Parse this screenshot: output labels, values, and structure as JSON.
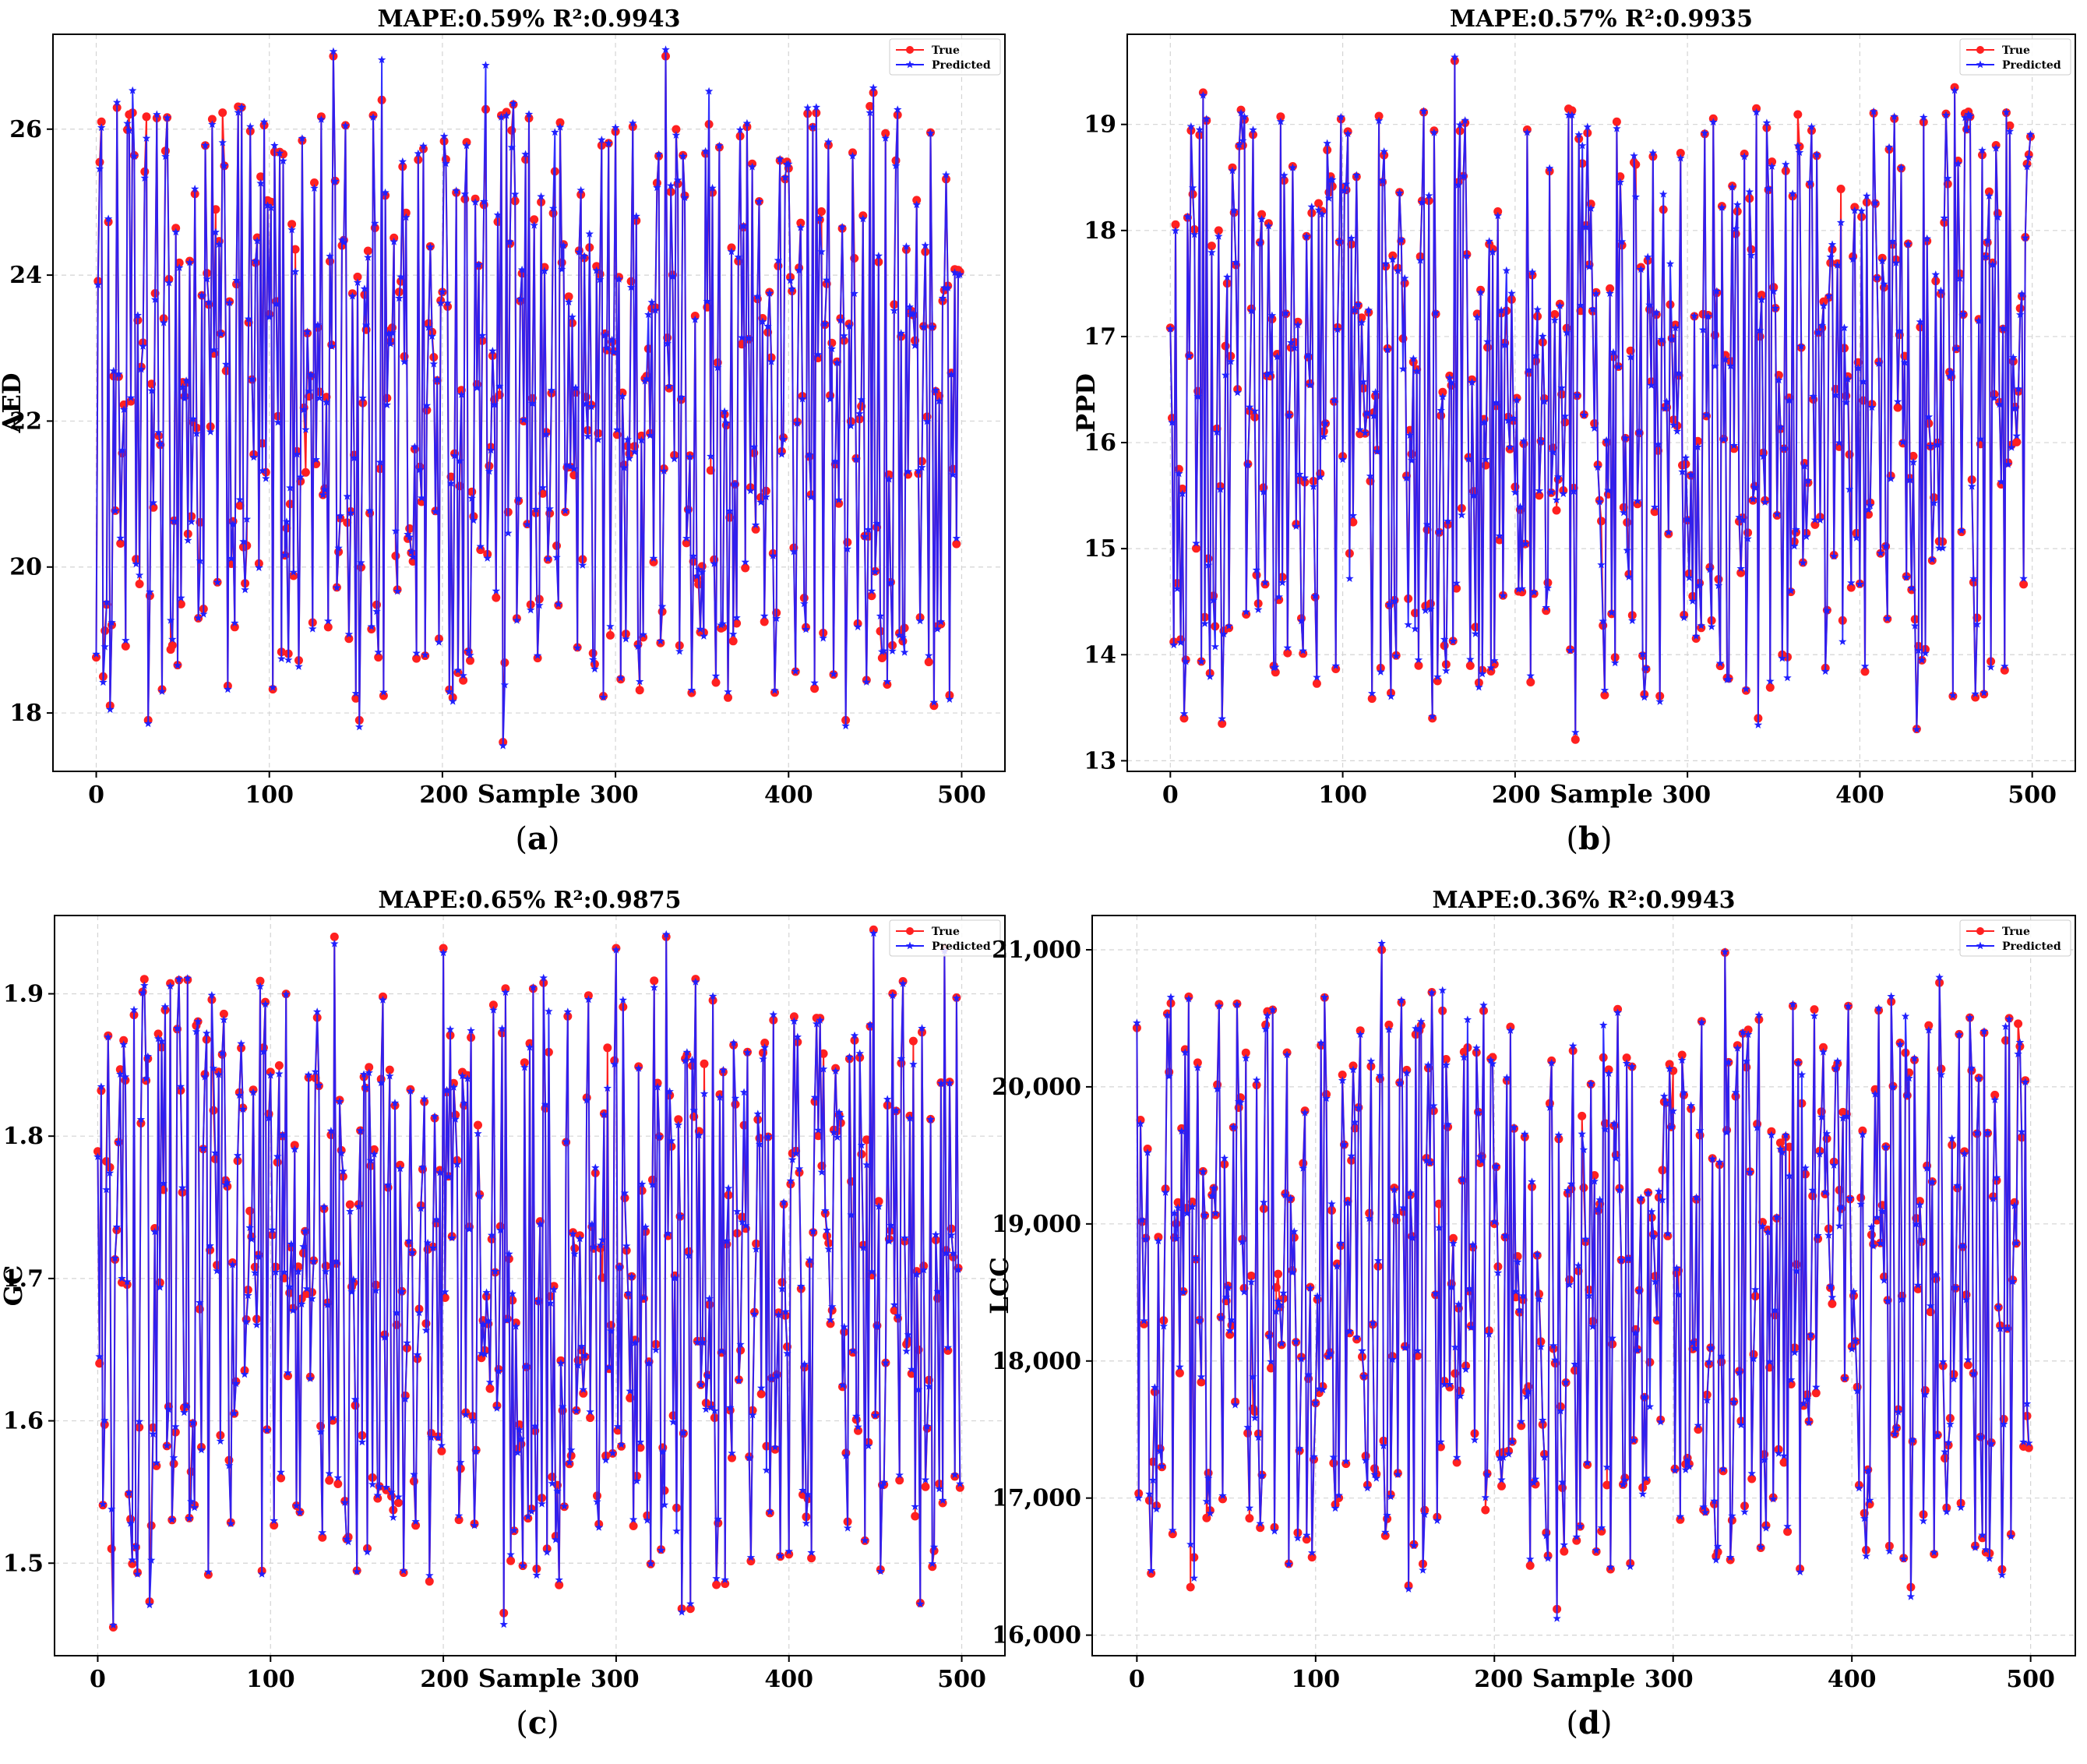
{
  "chart_data": [
    {
      "type": "line",
      "panel_id": "a",
      "title": "MAPE:0.59% R²:0.9943",
      "xlabel": "Sample",
      "ylabel": "AED",
      "xlim": [
        -25,
        525
      ],
      "ylim": [
        17.2,
        27.3
      ],
      "xticks": [
        0,
        100,
        200,
        300,
        400,
        500
      ],
      "xtick_labels": [
        "0",
        "100",
        "200",
        "300",
        "400",
        "500"
      ],
      "yticks": [
        18,
        20,
        22,
        24,
        26
      ],
      "ytick_labels": [
        "18",
        "20",
        "22",
        "24",
        "26"
      ],
      "grid": true,
      "legend_position": "top-right",
      "n_samples": 500,
      "series": [
        {
          "name": "True",
          "color": "#ff2020",
          "marker": "circle"
        },
        {
          "name": "Predicted",
          "color": "#2020ff",
          "marker": "star"
        }
      ],
      "highlights": [
        {
          "x": 137,
          "y": 27.0
        },
        {
          "x": 329,
          "y": 27.0
        },
        {
          "x": 84,
          "y": 26.3
        },
        {
          "x": 165,
          "y": 26.4
        },
        {
          "x": 449,
          "y": 26.5
        },
        {
          "x": 19,
          "y": 26.2
        },
        {
          "x": 235,
          "y": 17.6
        },
        {
          "x": 30,
          "y": 17.9
        },
        {
          "x": 433,
          "y": 17.9
        },
        {
          "x": 152,
          "y": 17.9
        },
        {
          "x": 8,
          "y": 18.1
        },
        {
          "x": 484,
          "y": 18.1
        }
      ]
    },
    {
      "type": "line",
      "panel_id": "b",
      "title": "MAPE:0.57% R²:0.9935",
      "xlabel": "Sample",
      "ylabel": "PPD",
      "xlim": [
        -25,
        525
      ],
      "ylim": [
        12.9,
        19.85
      ],
      "xticks": [
        0,
        100,
        200,
        300,
        400,
        500
      ],
      "xtick_labels": [
        "0",
        "100",
        "200",
        "300",
        "400",
        "500"
      ],
      "yticks": [
        13,
        14,
        15,
        16,
        17,
        18,
        19
      ],
      "ytick_labels": [
        "13",
        "14",
        "15",
        "16",
        "17",
        "18",
        "19"
      ],
      "grid": true,
      "legend_position": "top-right",
      "n_samples": 500,
      "series": [
        {
          "name": "True",
          "color": "#ff2020",
          "marker": "circle"
        },
        {
          "name": "Predicted",
          "color": "#2020ff",
          "marker": "star"
        }
      ],
      "highlights": [
        {
          "x": 165,
          "y": 19.6
        },
        {
          "x": 19,
          "y": 19.3
        },
        {
          "x": 455,
          "y": 19.35
        },
        {
          "x": 340,
          "y": 19.15
        },
        {
          "x": 99,
          "y": 19.05
        },
        {
          "x": 450,
          "y": 19.1
        },
        {
          "x": 235,
          "y": 13.2
        },
        {
          "x": 30,
          "y": 13.35
        },
        {
          "x": 433,
          "y": 13.3
        },
        {
          "x": 8,
          "y": 13.4
        },
        {
          "x": 152,
          "y": 13.4
        },
        {
          "x": 341,
          "y": 13.4
        }
      ]
    },
    {
      "type": "line",
      "panel_id": "c",
      "title": "MAPE:0.65% R²:0.9875",
      "xlabel": "Sample",
      "ylabel": "GC",
      "xlim": [
        -25,
        525
      ],
      "ylim": [
        1.435,
        1.955
      ],
      "xticks": [
        0,
        100,
        200,
        300,
        400,
        500
      ],
      "xtick_labels": [
        "0",
        "100",
        "200",
        "300",
        "400",
        "500"
      ],
      "yticks": [
        1.5,
        1.6,
        1.7,
        1.8,
        1.9
      ],
      "ytick_labels": [
        "1.5",
        "1.6",
        "1.7",
        "1.8",
        "1.9"
      ],
      "grid": true,
      "legend_position": "top-right",
      "n_samples": 500,
      "series": [
        {
          "name": "True",
          "color": "#ff2020",
          "marker": "circle"
        },
        {
          "name": "Predicted",
          "color": "#2020ff",
          "marker": "star"
        }
      ],
      "highlights": [
        {
          "x": 137,
          "y": 1.94
        },
        {
          "x": 329,
          "y": 1.94
        },
        {
          "x": 449,
          "y": 1.945
        },
        {
          "x": 200,
          "y": 1.932
        },
        {
          "x": 300,
          "y": 1.932
        },
        {
          "x": 490,
          "y": 1.932
        },
        {
          "x": 9,
          "y": 1.455
        },
        {
          "x": 235,
          "y": 1.465
        },
        {
          "x": 338,
          "y": 1.468
        },
        {
          "x": 343,
          "y": 1.468
        },
        {
          "x": 30,
          "y": 1.473
        },
        {
          "x": 476,
          "y": 1.472
        }
      ]
    },
    {
      "type": "line",
      "panel_id": "d",
      "title": "MAPE:0.36% R²:0.9943",
      "xlabel": "Sample",
      "ylabel": "LCC",
      "xlim": [
        -25,
        525
      ],
      "ylim": [
        15850,
        21250
      ],
      "xticks": [
        0,
        100,
        200,
        300,
        400,
        500
      ],
      "xtick_labels": [
        "0",
        "100",
        "200",
        "300",
        "400",
        "500"
      ],
      "yticks": [
        16000,
        17000,
        18000,
        19000,
        20000,
        21000
      ],
      "ytick_labels": [
        "16,000",
        "17,000",
        "18,000",
        "19,000",
        "20,000",
        "21,000"
      ],
      "grid": true,
      "legend_position": "top-right",
      "n_samples": 500,
      "series": [
        {
          "name": "True",
          "color": "#ff2020",
          "marker": "circle"
        },
        {
          "name": "Predicted",
          "color": "#2020ff",
          "marker": "star"
        }
      ],
      "highlights": [
        {
          "x": 137,
          "y": 21000
        },
        {
          "x": 329,
          "y": 20980
        },
        {
          "x": 449,
          "y": 20760
        },
        {
          "x": 165,
          "y": 20690
        },
        {
          "x": 19,
          "y": 20610
        },
        {
          "x": 488,
          "y": 20500
        },
        {
          "x": 235,
          "y": 16190
        },
        {
          "x": 30,
          "y": 16350
        },
        {
          "x": 433,
          "y": 16350
        },
        {
          "x": 152,
          "y": 16360
        },
        {
          "x": 8,
          "y": 16450
        },
        {
          "x": 484,
          "y": 16480
        }
      ]
    }
  ],
  "captions": [
    {
      "open": "(",
      "letter": "a",
      "close": ")"
    },
    {
      "open": "(",
      "letter": "b",
      "close": ")"
    },
    {
      "open": "(",
      "letter": "c",
      "close": ")"
    },
    {
      "open": "(",
      "letter": "d",
      "close": ")"
    }
  ]
}
